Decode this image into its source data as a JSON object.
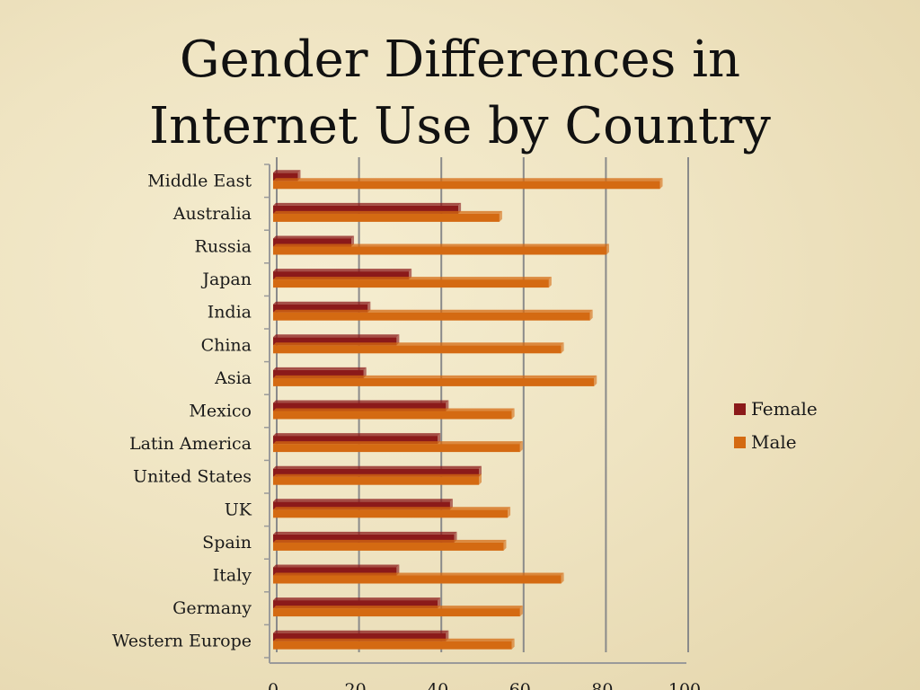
{
  "slide": {
    "title_line1": "Gender Differences in",
    "title_line2": "Internet Use by Country"
  },
  "colors": {
    "female": "#8b1a1a",
    "male": "#d46a12",
    "gridline": "#8a8a8a"
  },
  "chart_data": {
    "type": "bar",
    "orientation": "horizontal",
    "categories": [
      "Middle East",
      "Australia",
      "Russia",
      "Japan",
      "India",
      "China",
      "Asia",
      "Mexico",
      "Latin America",
      "United States",
      "UK",
      "Spain",
      "Italy",
      "Germany",
      "Western Europe"
    ],
    "series": [
      {
        "name": "Female",
        "values": [
          6,
          45,
          19,
          33,
          23,
          30,
          22,
          42,
          40,
          50,
          43,
          44,
          30,
          40,
          42
        ]
      },
      {
        "name": "Male",
        "values": [
          94,
          55,
          81,
          67,
          77,
          70,
          78,
          58,
          60,
          50,
          57,
          56,
          70,
          60,
          58
        ]
      }
    ],
    "xlim": [
      0,
      100
    ],
    "xticks": [
      "0",
      "20",
      "40",
      "60",
      "80",
      "100"
    ],
    "grid": "vertical",
    "legend": "right"
  }
}
